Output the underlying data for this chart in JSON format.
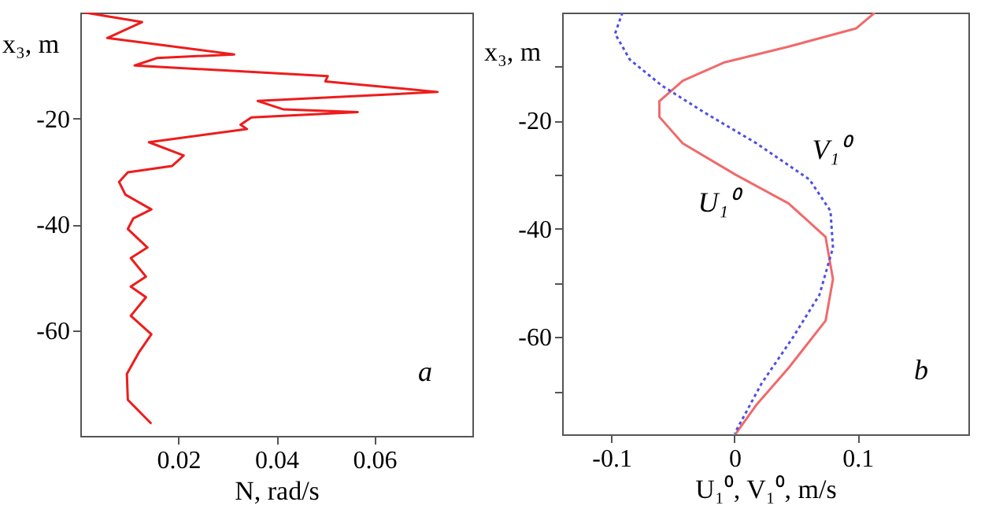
{
  "chart_data": [
    {
      "type": "line",
      "xlabel": "N, rad/s",
      "ylabel": "x₃, m",
      "xlim": [
        0,
        0.08
      ],
      "ylim": [
        -80,
        0
      ],
      "xticks": [
        0.02,
        0.04,
        0.06
      ],
      "yticks": [
        -60,
        -40,
        -20
      ],
      "annotations": [
        "a"
      ],
      "series": [
        {
          "color": "#ee1c1c",
          "line_style": "solid",
          "x": [
            0.001,
            0.0126,
            0.0055,
            0.0314,
            0.0156,
            0.0111,
            0.0505,
            0.05,
            0.0729,
            0.0362,
            0.0415,
            0.0566,
            0.0349,
            0.0327,
            0.034,
            0.014,
            0.0211,
            0.0187,
            0.0097,
            0.0079,
            0.0092,
            0.0145,
            0.0108,
            0.0097,
            0.0137,
            0.0103,
            0.0134,
            0.0103,
            0.0134,
            0.0103,
            0.0145,
            0.0119,
            0.0095,
            0.0097,
            0.0145
          ],
          "values": [
            0,
            -1.8,
            -4.8,
            -7.9,
            -8.6,
            -10,
            -12,
            -13,
            -15,
            -16.7,
            -18.3,
            -18.8,
            -19.8,
            -21.2,
            -22,
            -24.5,
            -27,
            -29,
            -30.2,
            -32,
            -34.4,
            -37.2,
            -38.9,
            -40.9,
            -44.4,
            -46.4,
            -49.9,
            -51.8,
            -53.8,
            -57.3,
            -60.8,
            -64.3,
            -68.3,
            -73.2,
            -77.7
          ]
        }
      ]
    },
    {
      "type": "line",
      "xlabel": "U₁⁰, V₁⁰, m/s",
      "ylabel": "x₃, m",
      "xlim": [
        -0.14,
        0.19
      ],
      "ylim": [
        -78,
        0
      ],
      "xticks": [
        -0.1,
        0,
        0.1
      ],
      "yticks": [
        {
          "value": -70,
          "label": null
        },
        -60,
        {
          "value": -50,
          "label": null
        },
        -40,
        {
          "value": -30,
          "label": null
        },
        -20,
        {
          "value": -10,
          "label": null
        }
      ],
      "annotations": [
        "b"
      ],
      "series": [
        {
          "name": "U₁⁰",
          "color": "#f06a6a",
          "line_style": "solid",
          "x": [
            0.114,
            0.099,
            0.044,
            -0.008,
            -0.042,
            -0.061,
            -0.061,
            -0.042,
            0.001,
            0.044,
            0.074,
            0.08,
            0.074,
            0.044,
            0.018,
            0.001
          ],
          "values": [
            0,
            -2.9,
            -6.3,
            -9.2,
            -12.6,
            -16.4,
            -19.3,
            -24.2,
            -30,
            -35.3,
            -41.5,
            -49.3,
            -57,
            -65.7,
            -72.5,
            -77.9
          ]
        },
        {
          "name": "V₁⁰",
          "color": "#5050e0",
          "line_style": "dotted",
          "x": [
            -0.091,
            -0.097,
            -0.085,
            -0.059,
            -0.025,
            0.018,
            0.061,
            0.078,
            0.08,
            0.069,
            0.048,
            0.022,
            0
          ],
          "values": [
            0,
            -3.9,
            -8.7,
            -13.5,
            -18.4,
            -24.2,
            -30.9,
            -36.7,
            -43.5,
            -52.2,
            -59.9,
            -68.6,
            -77.9
          ]
        }
      ]
    }
  ]
}
